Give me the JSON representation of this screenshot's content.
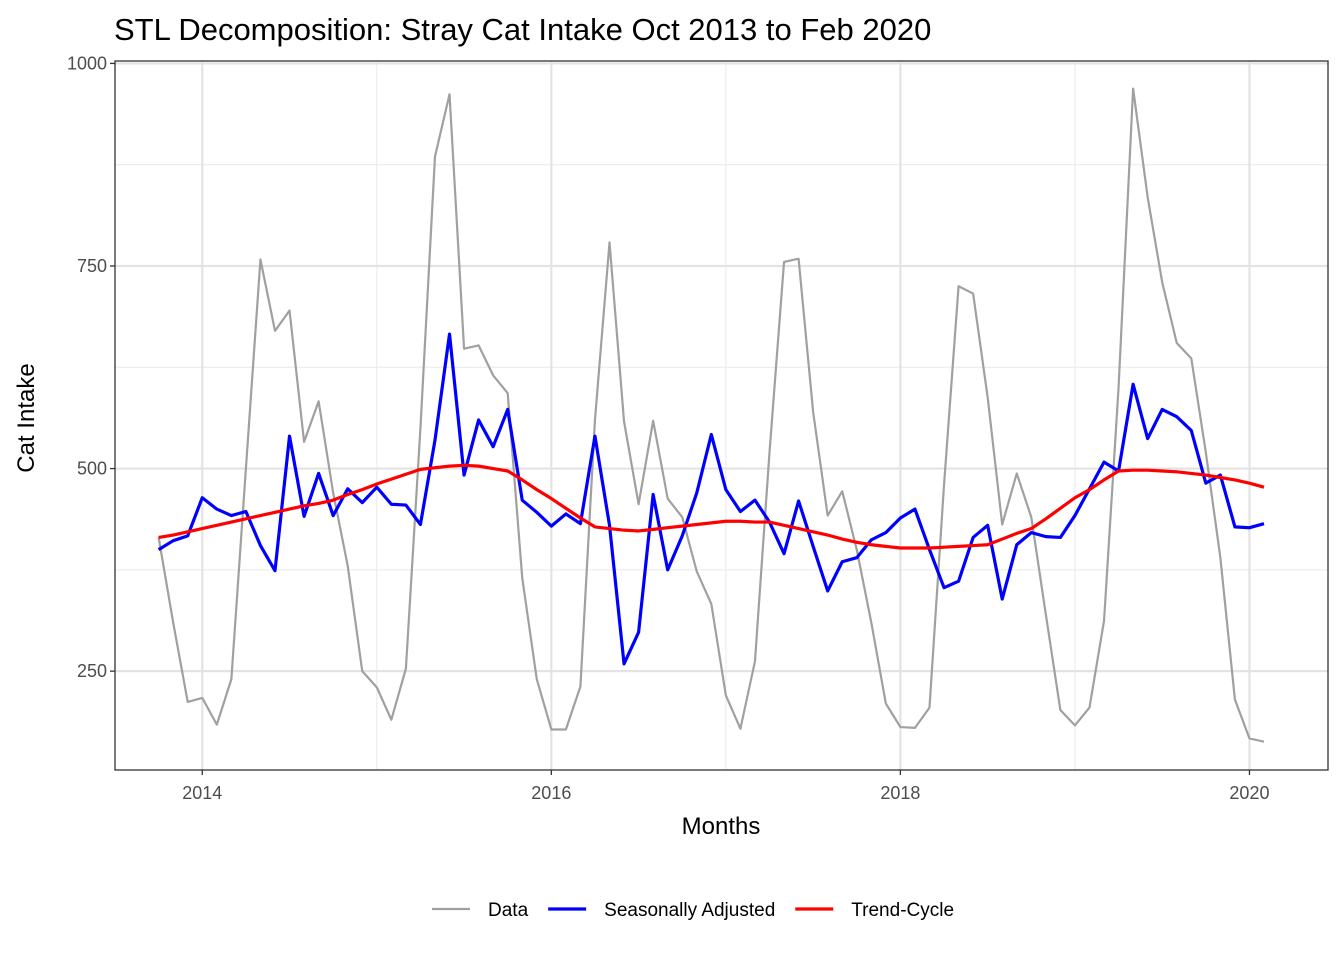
{
  "chart_data": {
    "type": "line",
    "title": "STL Decomposition: Stray Cat Intake Oct 2013 to Feb 2020",
    "xlabel": "Months",
    "ylabel": "Cat Intake",
    "x_start": "2013-10",
    "x_end": "2020-02",
    "xlim": [
      2013.5,
      2020.45
    ],
    "ylim": [
      128,
      1003
    ],
    "x_ticks": [
      2014,
      2016,
      2018,
      2020
    ],
    "x_tick_labels": [
      "2014",
      "2016",
      "2018",
      "2020"
    ],
    "y_ticks": [
      250,
      500,
      750,
      1000
    ],
    "y_tick_labels": [
      "250",
      "500",
      "750",
      "1000"
    ],
    "grid": true,
    "legend_position": "bottom",
    "series": [
      {
        "name": "Data",
        "color": "#a0a0a0",
        "stroke_width": 2.2,
        "values": [
          415,
          310,
          212,
          217,
          184,
          240,
          500,
          758,
          670,
          695,
          533,
          583,
          470,
          380,
          250,
          230,
          190,
          253,
          550,
          885,
          962,
          648,
          652,
          615,
          593,
          365,
          240,
          178,
          178,
          231,
          560,
          779,
          558,
          456,
          559,
          463,
          440,
          373,
          333,
          220,
          179,
          262,
          520,
          755,
          759,
          570,
          442,
          472,
          400,
          310,
          210,
          181,
          180,
          205,
          480,
          725,
          716,
          588,
          431,
          494,
          440,
          320,
          202,
          183,
          205,
          312,
          600,
          969,
          835,
          730,
          655,
          636,
          520,
          390,
          215,
          167,
          163
        ]
      },
      {
        "name": "Seasonally Adjusted",
        "color": "#0000ff",
        "stroke_width": 3.2,
        "values": [
          400,
          411,
          417,
          464,
          450,
          442,
          447,
          405,
          374,
          540,
          441,
          494,
          442,
          475,
          458,
          477,
          456,
          455,
          431,
          535,
          666,
          492,
          560,
          527,
          573,
          461,
          446,
          429,
          444,
          432,
          540,
          430,
          259,
          298,
          468,
          375,
          417,
          470,
          542,
          474,
          447,
          461,
          434,
          395,
          460,
          404,
          349,
          385,
          390,
          412,
          421,
          439,
          450,
          400,
          353,
          361,
          415,
          430,
          339,
          406,
          421,
          416,
          415,
          442,
          475,
          508,
          497,
          604,
          537,
          573,
          564,
          547,
          482,
          492,
          428,
          427,
          432
        ]
      },
      {
        "name": "Trend-Cycle",
        "color": "#ff0000",
        "stroke_width": 3.2,
        "values": [
          415,
          418,
          422,
          426,
          430,
          434,
          438,
          442,
          446,
          450,
          454,
          457,
          461,
          468,
          474,
          481,
          487,
          493,
          499,
          501,
          503,
          504,
          503,
          500,
          497,
          486,
          474,
          463,
          451,
          439,
          428,
          426,
          424,
          423,
          425,
          427,
          429,
          431,
          433,
          435,
          435,
          434,
          434,
          430,
          426,
          422,
          418,
          413,
          409,
          406,
          404,
          402,
          402,
          402,
          403,
          404,
          405,
          406,
          413,
          420,
          426,
          438,
          451,
          464,
          474,
          486,
          497,
          498,
          498,
          497,
          496,
          494,
          492,
          489,
          486,
          482,
          477
        ]
      }
    ]
  }
}
